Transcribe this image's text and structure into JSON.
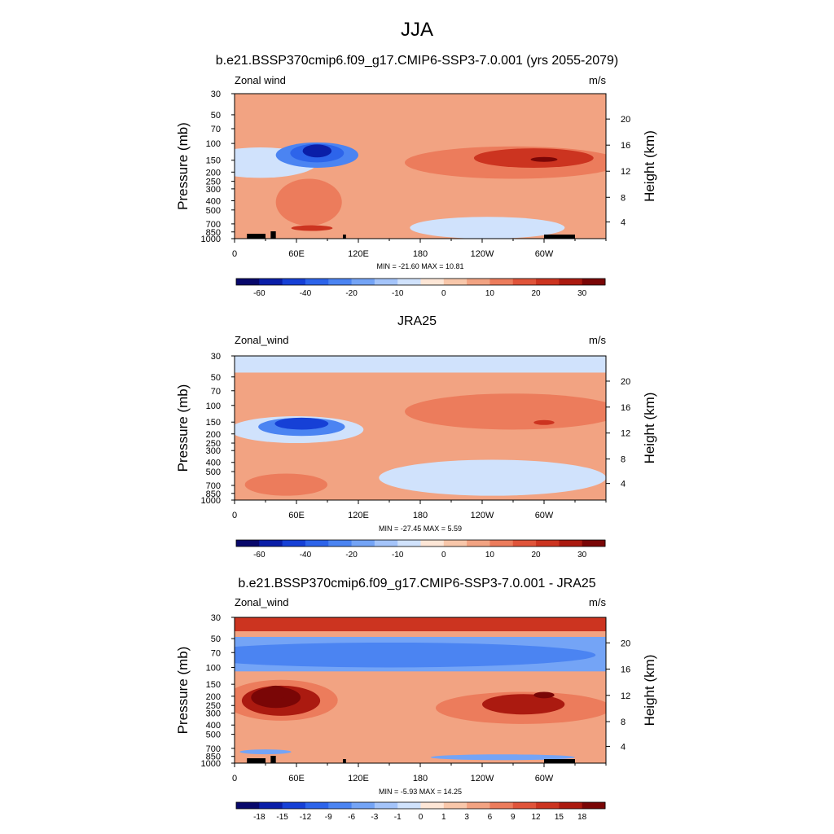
{
  "figure_title": "JJA",
  "chart_data": [
    {
      "type": "heatmap",
      "title": "b.e21.BSSP370cmip6.f09_g17.CMIP6-SSP3-7.0.001 (yrs 2055-2079)",
      "left_label": "Zonal wind",
      "right_label": "m/s",
      "ylabel": "Pressure (mb)",
      "ylabel_right": "Height (km)",
      "x_ticks": [
        "0",
        "60E",
        "120E",
        "180",
        "120W",
        "60W"
      ],
      "y_ticks": [
        "30",
        "50",
        "70",
        "100",
        "150",
        "200",
        "250",
        "300",
        "400",
        "500",
        "700",
        "850",
        "1000"
      ],
      "height_ticks": [
        "20",
        "16",
        "12",
        "8",
        "4"
      ],
      "stats": "MIN = -21.60  MAX =  10.81",
      "colorbar_labels": [
        "-60",
        "-40",
        "-20",
        "-10",
        "0",
        "10",
        "20",
        "30"
      ],
      "colorbar_colors": [
        "#08086b",
        "#0a1ea8",
        "#1640d6",
        "#2d64ea",
        "#4b84f2",
        "#74a4f6",
        "#a4c4fa",
        "#d0e2fc",
        "#fde6d6",
        "#f8c7aa",
        "#f2a382",
        "#ec7c5c",
        "#e0543a",
        "#cc3420",
        "#ab1a10",
        "#7a0606"
      ],
      "features": [
        {
          "type": "bg",
          "v": 2
        },
        {
          "type": "blob",
          "x": 25,
          "y": 150,
          "rx": 55,
          "ry": 80,
          "v": -3
        },
        {
          "type": "blob",
          "x": 80,
          "y": 125,
          "rx": 40,
          "ry": 55,
          "v": -8
        },
        {
          "type": "blob",
          "x": 80,
          "y": 120,
          "rx": 26,
          "ry": 38,
          "v": -13
        },
        {
          "type": "blob",
          "x": 80,
          "y": 115,
          "rx": 14,
          "ry": 25,
          "v": -20
        },
        {
          "type": "blob",
          "x": 72,
          "y": 400,
          "rx": 32,
          "ry": 330,
          "v": 4
        },
        {
          "type": "blob",
          "x": 75,
          "y": 760,
          "rx": 20,
          "ry": 70,
          "v": 8
        },
        {
          "type": "blob",
          "x": 270,
          "y": 150,
          "rx": 105,
          "ry": 85,
          "v": 4
        },
        {
          "type": "blob",
          "x": 290,
          "y": 135,
          "rx": 58,
          "ry": 45,
          "v": 8
        },
        {
          "type": "blob",
          "x": 300,
          "y": 145,
          "rx": 13,
          "ry": 10,
          "v": 12
        },
        {
          "type": "blob",
          "x": 245,
          "y": 750,
          "rx": 75,
          "ry": 320,
          "v": -3
        }
      ]
    },
    {
      "type": "heatmap",
      "title": "JRA25",
      "left_label": "Zonal_wind",
      "right_label": "m/s",
      "ylabel": "Pressure (mb)",
      "ylabel_right": "Height (km)",
      "x_ticks": [
        "0",
        "60E",
        "120E",
        "180",
        "120W",
        "60W"
      ],
      "y_ticks": [
        "30",
        "50",
        "70",
        "100",
        "150",
        "200",
        "250",
        "300",
        "400",
        "500",
        "700",
        "850",
        "1000"
      ],
      "height_ticks": [
        "20",
        "16",
        "12",
        "8",
        "4"
      ],
      "stats": "MIN = -27.45  MAX =   5.59",
      "colorbar_labels": [
        "-60",
        "-40",
        "-20",
        "-10",
        "0",
        "10",
        "20",
        "30"
      ],
      "colorbar_colors": [
        "#08086b",
        "#0a1ea8",
        "#1640d6",
        "#2d64ea",
        "#4b84f2",
        "#74a4f6",
        "#a4c4fa",
        "#d0e2fc",
        "#fde6d6",
        "#f8c7aa",
        "#f2a382",
        "#ec7c5c",
        "#e0543a",
        "#cc3420",
        "#ab1a10",
        "#7a0606"
      ],
      "features": [
        {
          "type": "bg",
          "v": 2
        },
        {
          "type": "band",
          "p0": 30,
          "p1": 45,
          "v": -3
        },
        {
          "type": "blob",
          "x": 60,
          "y": 170,
          "rx": 65,
          "ry": 80,
          "v": -3
        },
        {
          "type": "blob",
          "x": 65,
          "y": 160,
          "rx": 42,
          "ry": 50,
          "v": -8
        },
        {
          "type": "blob",
          "x": 65,
          "y": 150,
          "rx": 26,
          "ry": 30,
          "v": -15
        },
        {
          "type": "blob",
          "x": 270,
          "y": 110,
          "rx": 105,
          "ry": 70,
          "v": 4
        },
        {
          "type": "blob",
          "x": 300,
          "y": 150,
          "rx": 10,
          "ry": 7,
          "v": 8
        },
        {
          "type": "blob",
          "x": 250,
          "y": 550,
          "rx": 110,
          "ry": 350,
          "v": -3
        },
        {
          "type": "blob",
          "x": 50,
          "y": 650,
          "rx": 40,
          "ry": 250,
          "v": 4
        }
      ]
    },
    {
      "type": "heatmap",
      "title": "b.e21.BSSP370cmip6.f09_g17.CMIP6-SSP3-7.0.001 - JRA25",
      "left_label": "Zonal_wind",
      "right_label": "m/s",
      "ylabel": "Pressure (mb)",
      "ylabel_right": "Height (km)",
      "x_ticks": [
        "0",
        "60E",
        "120E",
        "180",
        "120W",
        "60W"
      ],
      "y_ticks": [
        "30",
        "50",
        "70",
        "100",
        "150",
        "200",
        "250",
        "300",
        "400",
        "500",
        "700",
        "850",
        "1000"
      ],
      "height_ticks": [
        "20",
        "16",
        "12",
        "8",
        "4"
      ],
      "stats": "MIN =  -5.93  MAX =  14.25",
      "colorbar_labels": [
        "-18",
        "-15",
        "-12",
        "-9",
        "-6",
        "-3",
        "-1",
        "0",
        "1",
        "3",
        "6",
        "9",
        "12",
        "15",
        "18"
      ],
      "colorbar_colors": [
        "#08086b",
        "#0a1ea8",
        "#1640d6",
        "#2d64ea",
        "#4b84f2",
        "#74a4f6",
        "#a4c4fa",
        "#d0e2fc",
        "#fde6d6",
        "#f8c7aa",
        "#f2a382",
        "#ec7c5c",
        "#e0543a",
        "#cc3420",
        "#ab1a10",
        "#7a0606"
      ],
      "features": [
        {
          "type": "bg",
          "v": 2
        },
        {
          "type": "band",
          "p0": 30,
          "p1": 42,
          "v": 6
        },
        {
          "type": "band",
          "p0": 42,
          "p1": 48,
          "v": 2
        },
        {
          "type": "band",
          "p0": 48,
          "p1": 110,
          "v": -2
        },
        {
          "type": "blob",
          "x": 150,
          "y": 70,
          "rx": 200,
          "ry": 30,
          "v": -4
        },
        {
          "type": "blob",
          "x": 45,
          "y": 210,
          "rx": 55,
          "ry": 150,
          "v": 4
        },
        {
          "type": "blob",
          "x": 45,
          "y": 210,
          "rx": 38,
          "ry": 110,
          "v": 8
        },
        {
          "type": "blob",
          "x": 40,
          "y": 195,
          "rx": 24,
          "ry": 70,
          "v": 11
        },
        {
          "type": "blob",
          "x": 40,
          "y": 175,
          "rx": 12,
          "ry": 40,
          "v": 14
        },
        {
          "type": "blob",
          "x": 280,
          "y": 250,
          "rx": 85,
          "ry": 140,
          "v": 4
        },
        {
          "type": "blob",
          "x": 280,
          "y": 230,
          "rx": 40,
          "ry": 80,
          "v": 8
        },
        {
          "type": "blob",
          "x": 300,
          "y": 190,
          "rx": 10,
          "ry": 20,
          "v": 10
        },
        {
          "type": "blob",
          "x": 260,
          "y": 850,
          "rx": 70,
          "ry": 80,
          "v": -2
        },
        {
          "type": "blob",
          "x": 30,
          "y": 750,
          "rx": 25,
          "ry": 50,
          "v": -2
        }
      ]
    }
  ]
}
